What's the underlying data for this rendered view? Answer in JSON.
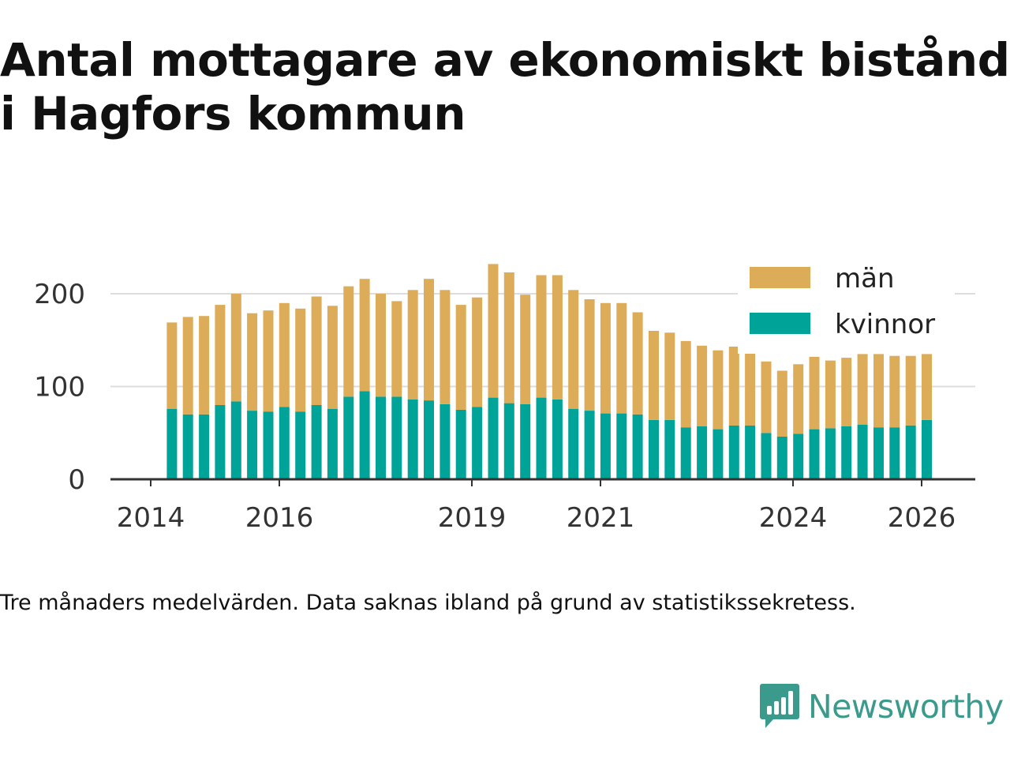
{
  "title": {
    "line1": "Antal mottagare av ekonomiskt bistånd",
    "line2": "i Hagfors kommun"
  },
  "caption": "Tre månaders medelvärden. Data saknas ibland på grund av statistikssekretess.",
  "brand": {
    "name": "Newsworthy",
    "icon": "newsworthy-logo-icon",
    "color": "#3a9b8d"
  },
  "colors": {
    "men": "#dcac58",
    "women": "#00a398",
    "grid": "#dddddd",
    "axis": "#333333"
  },
  "chart_data": {
    "type": "bar",
    "stacked": true,
    "title": "Antal mottagare av ekonomiskt bistånd i Hagfors kommun",
    "xlabel": "",
    "ylabel": "",
    "ylim": [
      0,
      250
    ],
    "yticks": [
      0,
      100,
      200
    ],
    "xlim": [
      2014.0,
      2026.5
    ],
    "xticks": [
      2014,
      2016,
      2019,
      2021,
      2024,
      2026
    ],
    "grid": true,
    "legend_position": "top-right",
    "x": [
      2014.33,
      2014.58,
      2014.83,
      2015.08,
      2015.33,
      2015.58,
      2015.83,
      2016.08,
      2016.33,
      2016.58,
      2016.83,
      2017.08,
      2017.33,
      2017.58,
      2017.83,
      2018.08,
      2018.33,
      2018.58,
      2018.83,
      2019.08,
      2019.33,
      2019.58,
      2019.83,
      2020.08,
      2020.33,
      2020.58,
      2020.83,
      2021.08,
      2021.33,
      2021.58,
      2021.83,
      2022.08,
      2022.33,
      2022.58,
      2022.83,
      2023.08,
      2023.33,
      2023.58,
      2023.83,
      2024.08,
      2024.33,
      2024.58,
      2024.83,
      2025.08,
      2025.33,
      2025.58,
      2025.83,
      2026.08
    ],
    "series": [
      {
        "name": "kvinnor",
        "values": [
          76,
          70,
          70,
          80,
          84,
          74,
          73,
          78,
          73,
          80,
          76,
          89,
          95,
          89,
          89,
          86,
          85,
          81,
          75,
          78,
          88,
          82,
          81,
          88,
          86,
          76,
          74,
          71,
          71,
          70,
          64,
          64,
          56,
          57,
          54,
          58,
          58,
          50,
          46,
          49,
          54,
          55,
          57,
          59,
          56,
          56,
          58,
          64
        ]
      },
      {
        "name": "män",
        "values": [
          93,
          105,
          106,
          108,
          116,
          105,
          109,
          112,
          111,
          117,
          111,
          119,
          121,
          111,
          103,
          118,
          131,
          123,
          113,
          118,
          144,
          141,
          118,
          132,
          134,
          128,
          120,
          119,
          119,
          110,
          96,
          94,
          93,
          87,
          85,
          85,
          78,
          77,
          71,
          75,
          78,
          73,
          74,
          76,
          79,
          77,
          75,
          71
        ]
      }
    ],
    "legend": [
      "män",
      "kvinnor"
    ]
  }
}
